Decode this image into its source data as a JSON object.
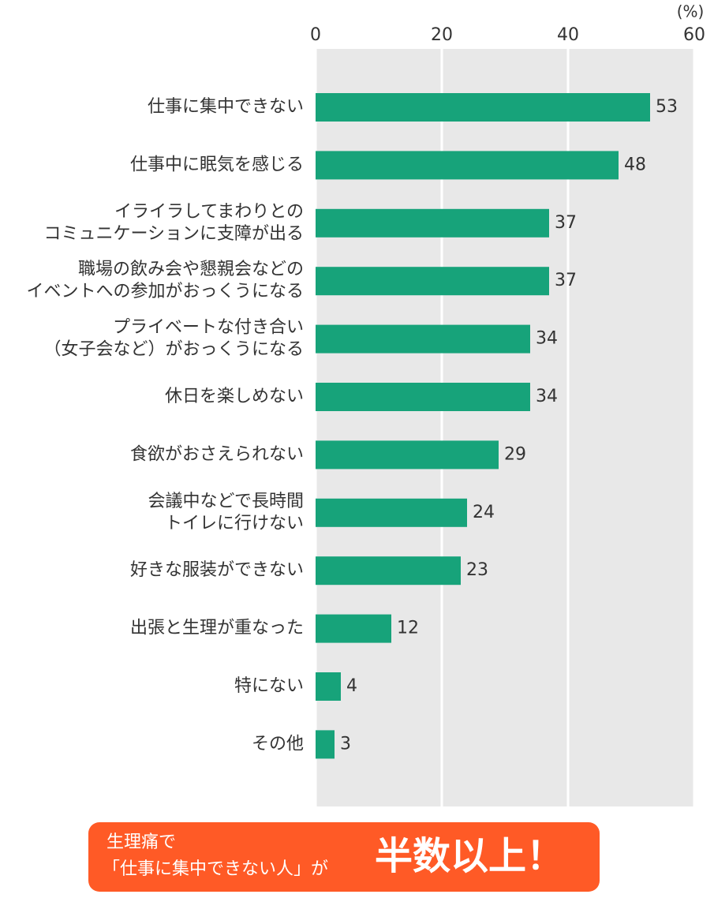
{
  "chart_data": {
    "type": "hbar",
    "unit": "(%)",
    "categories": [
      [
        "仕事に集中できない"
      ],
      [
        "仕事中に眠気を感じる"
      ],
      [
        "イライラしてまわりとの",
        "コミュニケーションに支障が出る"
      ],
      [
        "職場の飲み会や懇親会などの",
        "イベントへの参加がおっくうになる"
      ],
      [
        "プライベートな付き合い",
        "（女子会など）がおっくうになる"
      ],
      [
        "休日を楽しめない"
      ],
      [
        "食欲がおさえられない"
      ],
      [
        "会議中などで長時間",
        "トイレに行けない"
      ],
      [
        "好きな服装ができない"
      ],
      [
        "出張と生理が重なった"
      ],
      [
        "特にない"
      ],
      [
        "その他"
      ]
    ],
    "values": [
      53,
      48,
      37,
      37,
      34,
      34,
      29,
      24,
      23,
      12,
      4,
      3
    ],
    "color": "#17a37a",
    "xlim": [
      0,
      60
    ],
    "xticks": [
      0,
      20,
      40,
      60
    ],
    "grid": true,
    "annotation": {
      "lines": [
        "生理痛で",
        "「仕事に集中できない人」が"
      ],
      "emphasis": "半数以上！"
    }
  }
}
